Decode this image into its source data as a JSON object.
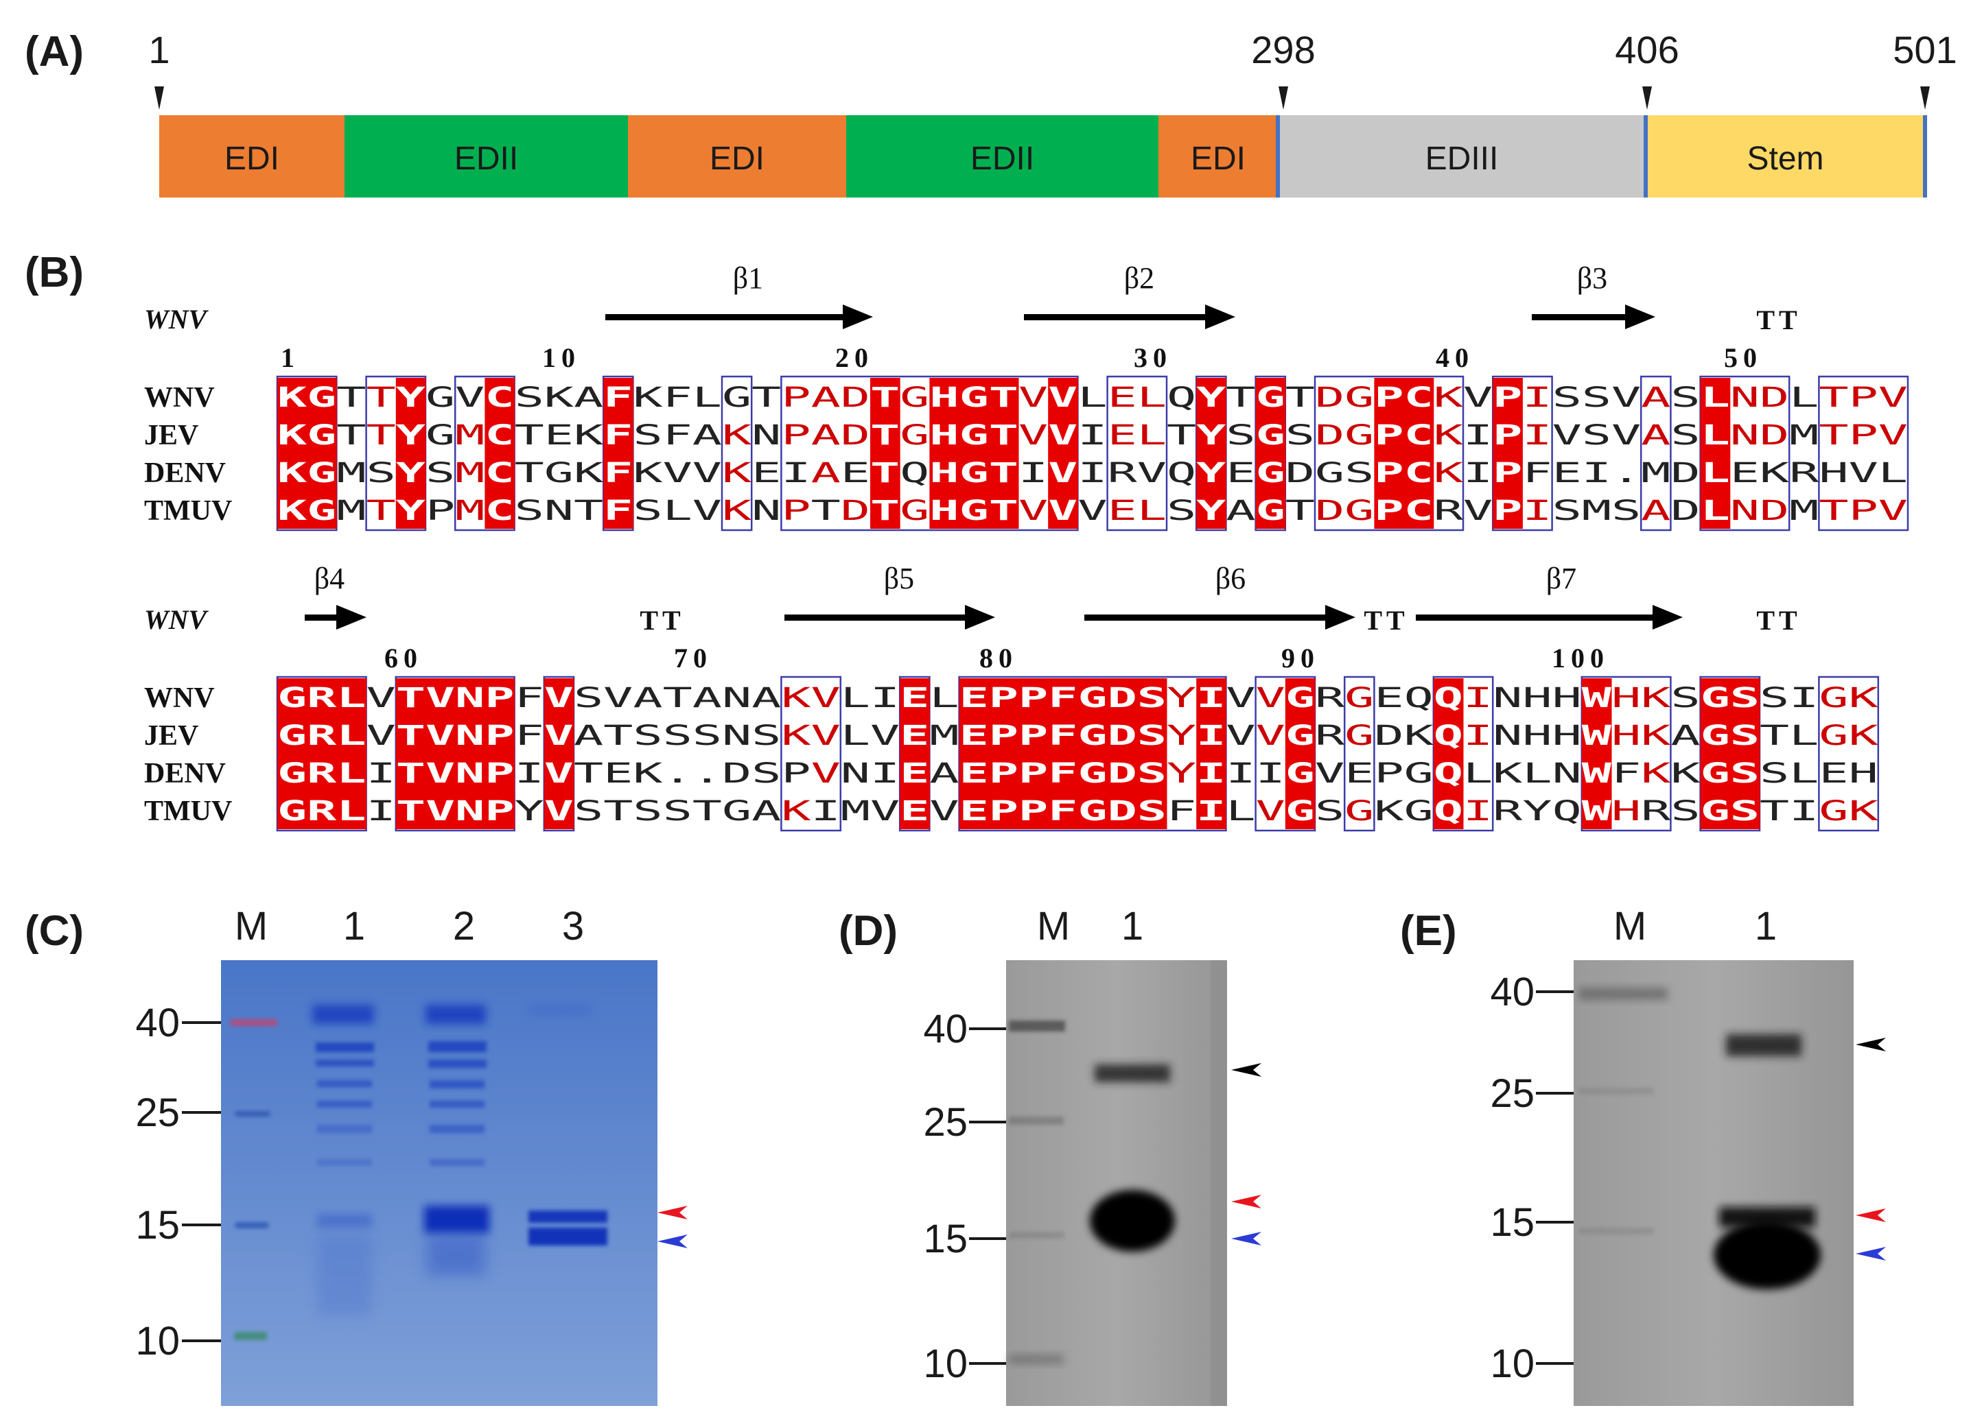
{
  "panelA": {
    "label": "(A)",
    "positions": [
      "1",
      "298",
      "406",
      "501"
    ],
    "domains": [
      {
        "name": "EDI",
        "color": "#ED7D31"
      },
      {
        "name": "EDII",
        "color": "#00B050"
      },
      {
        "name": "EDI",
        "color": "#ED7D31"
      },
      {
        "name": "EDII",
        "color": "#00B050"
      },
      {
        "name": "EDI",
        "color": "#ED7D31"
      },
      {
        "name": "EDIII",
        "color": "#C8C8C8"
      },
      {
        "name": "Stem",
        "color": "#FFD966"
      }
    ],
    "boundary_color": "#4472C4"
  },
  "panelB": {
    "label": "(B)",
    "ss_label": "WNV",
    "colors": {
      "conserved_bg": "#E60000",
      "similar_text": "#CC0000",
      "box": "#3C3CAA"
    },
    "blocks": [
      {
        "sheets": [
          "β1",
          "β2",
          "β3"
        ],
        "turns": [
          "TT"
        ],
        "numbers": [
          "1",
          "10",
          "20",
          "30",
          "40",
          "50"
        ],
        "names": [
          "WNV",
          "JEV",
          "DENV",
          "TMUV"
        ],
        "seqs": [
          "KGTTYGVCSKAFKFLGTPADTGHGTVVLELQYTGTDGPCKVPISSVASLNDLTPV",
          "KGTTYGMCTEKFSFAKNPADTGHGTVVIELTYSGSDGPCKIPIVSVASLNDMTPV",
          "KGMSYSMCTGKFKVVKEIAETQHGTIVIRVQYEGDGSPCKIPFEI.MDLEKRHVL",
          "KGMTYPMCSNTFSLVKNPTDTGHGTVVVELSYAGTDGPCRVPISMSADLNDMTPV"
        ]
      },
      {
        "sheets": [
          "β4",
          "β5",
          "β6",
          "β7"
        ],
        "turns": [
          "TT",
          "TT",
          "TT"
        ],
        "numbers": [
          "60",
          "70",
          "80",
          "90",
          "100"
        ],
        "names": [
          "WNV",
          "JEV",
          "DENV",
          "TMUV"
        ],
        "seqs": [
          "GRLVTVNPFVSVATANAKVLIELEPPFGDSYIVVGRGEQQINHHWHKSGSSIGK",
          "GRLVTVNPFVATSSSNSKVLVEMEPPFGDSYIVVGRGDKQINHHWHKAGSTLGK",
          "GRLITVNPIVTEK..DSPVNIEAEPPFGDSYIIIGVEPGQLKLNWFKKGSSLEH",
          "GRLITVNPYVSTSSTGAKIMVEVEPPFGDSFILVGSGKGQIRYQWHRSGSTIGK"
        ]
      }
    ]
  },
  "panelC": {
    "label": "(C)",
    "lanes": [
      "M",
      "1",
      "2",
      "3"
    ],
    "markers": [
      "40",
      "25",
      "15",
      "10"
    ],
    "arrow_colors": {
      "red": "#E8141E",
      "blue": "#2B3BD6"
    }
  },
  "panelD": {
    "label": "(D)",
    "lanes": [
      "M",
      "1"
    ],
    "markers": [
      "40",
      "25",
      "15",
      "10"
    ],
    "arrow_colors": {
      "black": "#000000",
      "red": "#E8141E",
      "blue": "#2B3BD6"
    }
  },
  "panelE": {
    "label": "(E)",
    "lanes": [
      "M",
      "1"
    ],
    "markers": [
      "40",
      "25",
      "15",
      "10"
    ],
    "arrow_colors": {
      "black": "#000000",
      "red": "#E8141E",
      "blue": "#2B3BD6"
    }
  }
}
